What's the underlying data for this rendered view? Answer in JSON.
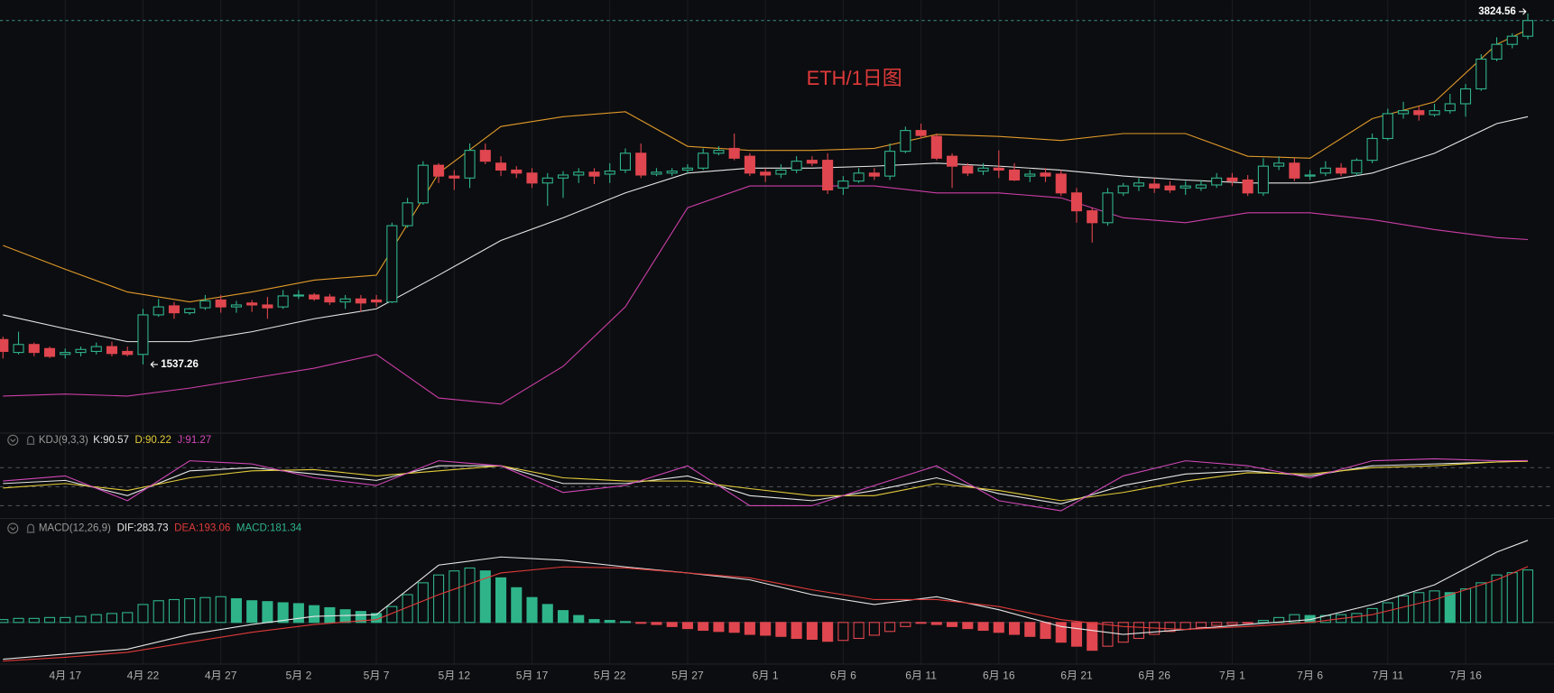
{
  "chart_data": [
    {
      "type": "candlestick",
      "title": "ETH/1日图",
      "categories": [
        null,
        null,
        null,
        null,
        "4月 17",
        null,
        null,
        null,
        null,
        "4月 22",
        null,
        null,
        null,
        null,
        "4月 27",
        null,
        null,
        null,
        null,
        "5月 2",
        null,
        null,
        null,
        null,
        "5月 7",
        null,
        null,
        null,
        null,
        "5月 12",
        null,
        null,
        null,
        null,
        "5月 17",
        null,
        null,
        null,
        null,
        "5月 22",
        null,
        null,
        null,
        null,
        "5月 27",
        null,
        null,
        null,
        null,
        "6月 1",
        null,
        null,
        null,
        null,
        "6月 6",
        null,
        null,
        null,
        null,
        "6月 11",
        null,
        null,
        null,
        null,
        "6月 16",
        null,
        null,
        null,
        null,
        "6月 21",
        null,
        null,
        null,
        null,
        "6月 26",
        null,
        null,
        null,
        null,
        "7月 1",
        null,
        null,
        null,
        null,
        "7月 6",
        null,
        null,
        null,
        null,
        "7月 11",
        null,
        null,
        null,
        null,
        "7月 16",
        null,
        null,
        null,
        null
      ],
      "open": [
        1703,
        1617,
        1670,
        1643,
        1604,
        1617,
        1624,
        1656,
        1624,
        1604,
        1867,
        1927,
        1881,
        1914,
        1966,
        1920,
        1946,
        1933,
        1920,
        1993,
        1999,
        1986,
        1953,
        1973,
        1966,
        1953,
        2460,
        2612,
        2862,
        2790,
        2777,
        2961,
        2876,
        2830,
        2810,
        2744,
        2777,
        2797,
        2816,
        2803,
        2830,
        2942,
        2803,
        2810,
        2830,
        2843,
        2942,
        2974,
        2922,
        2816,
        2803,
        2830,
        2895,
        2895,
        2711,
        2757,
        2810,
        2790,
        2955,
        3093,
        3054,
        2922,
        2856,
        2823,
        2843,
        2830,
        2790,
        2810,
        2803,
        2678,
        2559,
        2480,
        2678,
        2724,
        2737,
        2724,
        2711,
        2711,
        2731,
        2777,
        2764,
        2678,
        2856,
        2876,
        2790,
        2810,
        2843,
        2810,
        2895,
        3040,
        3205,
        3225,
        3199,
        3225,
        3271,
        3370,
        3568,
        3666,
        3720
      ],
      "high": [
        1722,
        1755,
        1683,
        1656,
        1643,
        1656,
        1683,
        1689,
        1656,
        1907,
        1973,
        1953,
        1914,
        1999,
        1999,
        1960,
        1966,
        1986,
        2032,
        2032,
        2012,
        2006,
        1999,
        1999,
        1999,
        2480,
        2645,
        2889,
        2876,
        2830,
        3007,
        3007,
        2922,
        2856,
        2843,
        2810,
        2823,
        2843,
        2843,
        2876,
        2974,
        3007,
        2843,
        2843,
        2869,
        2974,
        2988,
        3073,
        2942,
        2843,
        2869,
        2922,
        2922,
        2942,
        2790,
        2843,
        2843,
        3007,
        3119,
        3139,
        3073,
        2942,
        2876,
        2876,
        2961,
        2876,
        2830,
        2843,
        2830,
        2711,
        2579,
        2711,
        2744,
        2777,
        2777,
        2757,
        2757,
        2764,
        2810,
        2810,
        2797,
        2909,
        2922,
        2909,
        2830,
        2889,
        2876,
        2909,
        3073,
        3238,
        3284,
        3251,
        3271,
        3337,
        3403,
        3601,
        3713,
        3740,
        3871
      ],
      "low": [
        1577,
        1604,
        1591,
        1580,
        1577,
        1591,
        1604,
        1591,
        1591,
        1537.26,
        1854,
        1841,
        1867,
        1900,
        1881,
        1881,
        1887,
        1841,
        1907,
        1973,
        1960,
        1933,
        1907,
        1887,
        1920,
        1946,
        2447,
        2599,
        2744,
        2698,
        2711,
        2869,
        2790,
        2777,
        2711,
        2592,
        2645,
        2744,
        2737,
        2744,
        2810,
        2777,
        2790,
        2790,
        2810,
        2830,
        2928,
        2895,
        2790,
        2750,
        2777,
        2810,
        2856,
        2671,
        2665,
        2744,
        2764,
        2764,
        2942,
        3040,
        2895,
        2711,
        2790,
        2797,
        2777,
        2757,
        2750,
        2750,
        2658,
        2480,
        2348,
        2460,
        2658,
        2691,
        2678,
        2678,
        2665,
        2691,
        2711,
        2724,
        2658,
        2658,
        2830,
        2757,
        2764,
        2790,
        2790,
        2790,
        2876,
        3027,
        3172,
        3159,
        3185,
        3205,
        3185,
        3357,
        3554,
        3640,
        3700
      ],
      "close": [
        1624,
        1670,
        1617,
        1591,
        1617,
        1637,
        1656,
        1610,
        1604,
        1867,
        1920,
        1881,
        1907,
        1960,
        1920,
        1933,
        1933,
        1914,
        1993,
        1999,
        1973,
        1953,
        1973,
        1946,
        1953,
        2460,
        2612,
        2862,
        2790,
        2777,
        2961,
        2889,
        2830,
        2810,
        2744,
        2777,
        2797,
        2816,
        2790,
        2823,
        2942,
        2797,
        2816,
        2823,
        2843,
        2942,
        2961,
        2909,
        2810,
        2797,
        2830,
        2889,
        2876,
        2698,
        2757,
        2810,
        2790,
        2955,
        3093,
        3060,
        2909,
        2856,
        2810,
        2843,
        2830,
        2764,
        2803,
        2790,
        2678,
        2559,
        2480,
        2678,
        2724,
        2744,
        2711,
        2698,
        2724,
        2731,
        2777,
        2757,
        2678,
        2856,
        2876,
        2777,
        2797,
        2843,
        2810,
        2895,
        3040,
        3205,
        3225,
        3199,
        3225,
        3271,
        3370,
        3568,
        3666,
        3720,
        3824.56
      ],
      "up_color": "#2fb48a",
      "down_color": "#e0464f",
      "ylim": [
        960,
        3960
      ],
      "line_points": [
        0,
        4,
        8,
        12,
        16,
        20,
        24,
        28,
        32,
        36,
        40,
        44,
        48,
        52,
        56,
        60,
        64,
        68,
        72,
        76,
        80,
        84,
        88,
        92,
        96,
        98
      ],
      "bands": [
        {
          "color": "#e09a2a",
          "values": [
            2329,
            2171,
            2019,
            1953,
            2019,
            2098,
            2131,
            2810,
            3120,
            3185,
            3218,
            2988,
            2961,
            2961,
            2974,
            3067,
            3054,
            3027,
            3073,
            3073,
            2922,
            2909,
            3172,
            3284,
            3666,
            3765
          ]
        },
        {
          "color": "#e6e6e6",
          "values": [
            1867,
            1775,
            1689,
            1689,
            1755,
            1841,
            1907,
            2131,
            2362,
            2513,
            2678,
            2810,
            2843,
            2843,
            2856,
            2876,
            2856,
            2830,
            2790,
            2764,
            2744,
            2744,
            2810,
            2942,
            3139,
            3185
          ]
        },
        {
          "color": "#cc3ea8",
          "values": [
            1327,
            1340,
            1327,
            1380,
            1446,
            1512,
            1604,
            1314,
            1274,
            1525,
            1920,
            2579,
            2724,
            2724,
            2724,
            2678,
            2678,
            2645,
            2513,
            2480,
            2546,
            2546,
            2500,
            2434,
            2381,
            2368
          ]
        }
      ]
    },
    {
      "type": "line",
      "title": "KDJ(9,3,3)",
      "ylim": [
        0,
        100
      ],
      "levels": [
        20,
        50,
        80
      ],
      "series": [
        {
          "label": "K:90.57",
          "color": "#e6e6e6",
          "values": [
            55,
            60,
            36,
            75,
            80,
            70,
            60,
            83,
            83,
            55,
            55,
            67,
            36,
            28,
            44,
            64,
            39,
            23,
            52,
            70,
            75,
            67,
            83,
            86,
            89,
            90.57
          ]
        },
        {
          "label": "D:90.22",
          "color": "#e3cc3a",
          "values": [
            48,
            55,
            44,
            64,
            75,
            77,
            67,
            75,
            83,
            64,
            59,
            59,
            47,
            36,
            36,
            55,
            44,
            28,
            41,
            59,
            72,
            70,
            80,
            83,
            89,
            90.22
          ]
        },
        {
          "label": "J:91.27",
          "color": "#d048b8",
          "values": [
            59,
            67,
            28,
            91,
            86,
            64,
            52,
            91,
            83,
            41,
            52,
            83,
            20,
            20,
            52,
            83,
            28,
            12,
            67,
            91,
            83,
            64,
            91,
            94,
            91,
            91.27
          ]
        }
      ]
    },
    {
      "type": "macd",
      "title": "MACD(12,26,9)",
      "ylim": [
        -140,
        300
      ],
      "histogram": {
        "label": "MACD:181.34",
        "up_color": "#2fb48a",
        "down_color": "#e0464f",
        "values": [
          10,
          14,
          14,
          17,
          17,
          21,
          27,
          31,
          34,
          62,
          75,
          79,
          82,
          86,
          89,
          82,
          75,
          72,
          68,
          65,
          58,
          51,
          44,
          38,
          31,
          55,
          96,
          137,
          164,
          178,
          188,
          178,
          154,
          120,
          86,
          62,
          41,
          24,
          10,
          7,
          3,
          -3,
          -7,
          -14,
          -21,
          -27,
          -31,
          -34,
          -41,
          -44,
          -48,
          -55,
          -58,
          -65,
          -62,
          -55,
          -44,
          -31,
          -14,
          -3,
          -7,
          -14,
          -21,
          -27,
          -34,
          -41,
          -48,
          -55,
          -68,
          -82,
          -96,
          -82,
          -68,
          -55,
          -41,
          -31,
          -24,
          -17,
          -10,
          -7,
          -3,
          7,
          17,
          27,
          24,
          24,
          27,
          31,
          48,
          68,
          92,
          103,
          109,
          103,
          116,
          137,
          164,
          172,
          181.34
        ]
      },
      "series": [
        {
          "label": "DIF:283.73",
          "color": "#e6e6e6",
          "values": [
            -127,
            -109,
            -92,
            -41,
            -7,
            21,
            27,
            198,
            226,
            215,
            192,
            171,
            147,
            96,
            62,
            89,
            44,
            -14,
            -41,
            -24,
            -7,
            10,
            62,
            130,
            243,
            283.73
          ]
        },
        {
          "label": "DEA:193.06",
          "color": "#e03a3a",
          "values": [
            -133,
            -120,
            -103,
            -68,
            -34,
            -7,
            10,
            96,
            171,
            192,
            188,
            171,
            154,
            113,
            79,
            79,
            55,
            10,
            -14,
            -24,
            -14,
            0,
            27,
            79,
            147,
            193.06
          ]
        }
      ]
    }
  ]
}
